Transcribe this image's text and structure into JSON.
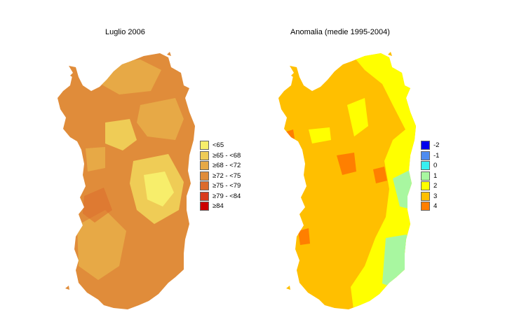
{
  "left_map": {
    "title": "Luglio 2006",
    "legend": [
      {
        "label": "<65",
        "color": "#f7ee6b"
      },
      {
        "label": "≥65 - <68",
        "color": "#efcc56"
      },
      {
        "label": "≥68 - <72",
        "color": "#e7a946"
      },
      {
        "label": "≥72 - <75",
        "color": "#e08c3a"
      },
      {
        "label": "≥75 - <79",
        "color": "#dc6b2c"
      },
      {
        "label": "≥79 - <84",
        "color": "#d83b1c"
      },
      {
        "label": "≥84",
        "color": "#cc0000"
      }
    ]
  },
  "right_map": {
    "title": "Anomalia (medie 1995-2004)",
    "legend": [
      {
        "label": "-2",
        "color": "#0000ee"
      },
      {
        "label": "-1",
        "color": "#4f8cf0"
      },
      {
        "label": "0",
        "color": "#38f0f0"
      },
      {
        "label": "1",
        "color": "#a8f7a0"
      },
      {
        "label": "2",
        "color": "#ffff00"
      },
      {
        "label": "3",
        "color": "#ffbf00"
      },
      {
        "label": "4",
        "color": "#ff7f00"
      }
    ]
  }
}
